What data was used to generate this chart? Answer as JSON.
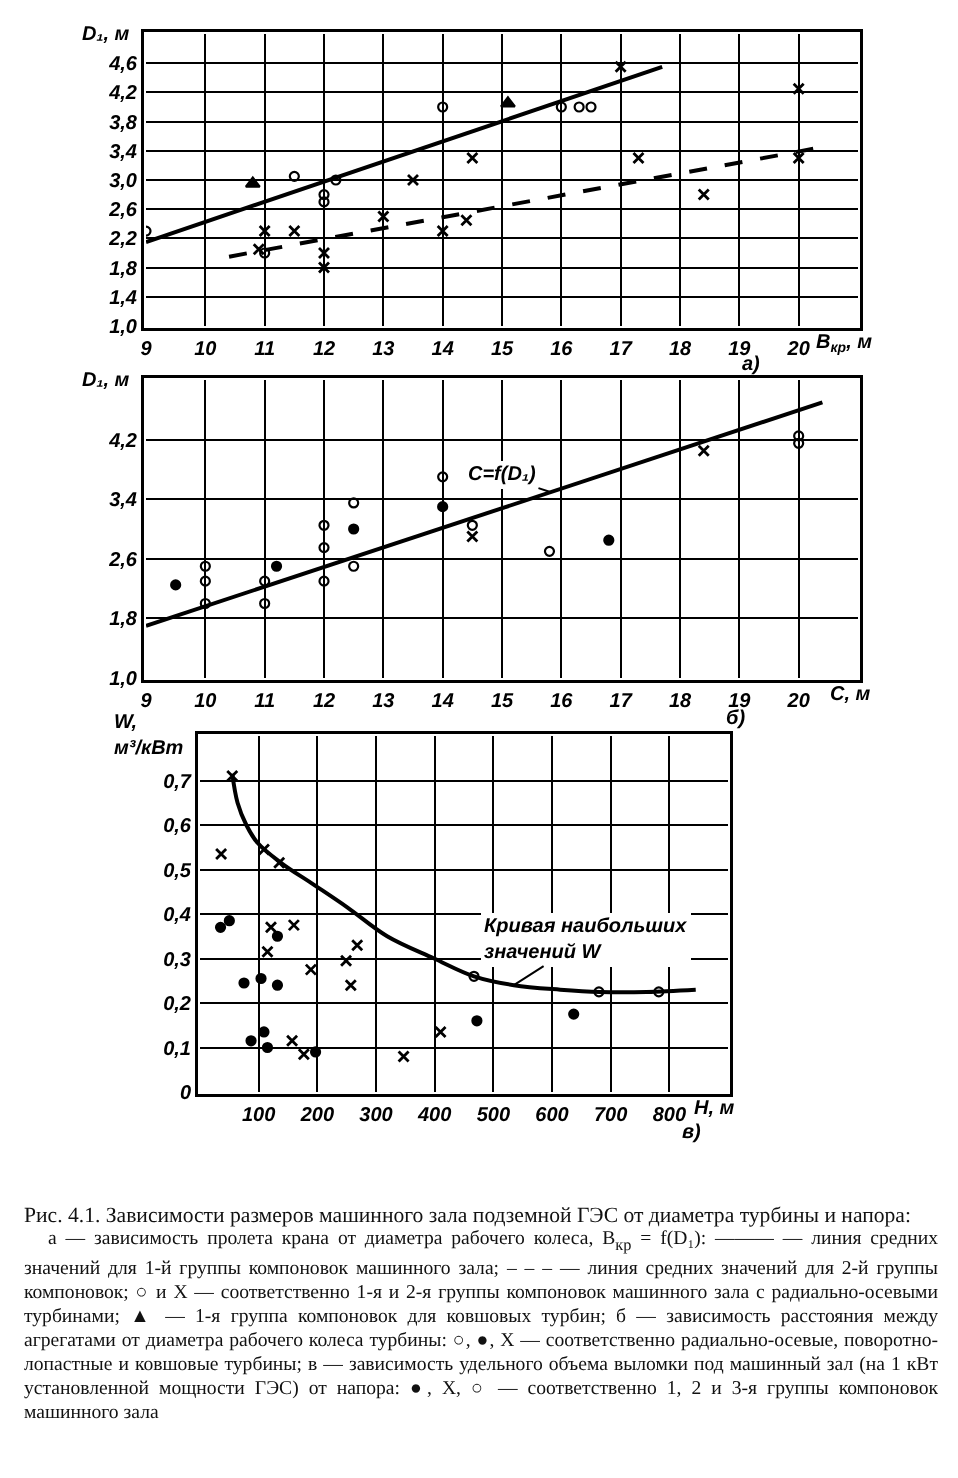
{
  "chart_data": [
    {
      "type": "scatter",
      "ylabel": "D₁, м",
      "xlabel": "B$_{кр}$, м",
      "annotations": [
        "а)"
      ],
      "xlim": [
        9,
        21
      ],
      "ylim": [
        1.0,
        5.0
      ],
      "xticks": [
        9,
        10,
        11,
        12,
        13,
        14,
        15,
        16,
        17,
        18,
        19,
        20
      ],
      "yticks": [
        {
          "value": 1.0,
          "label": "1,0"
        },
        {
          "value": 1.4,
          "label": "1,4"
        },
        {
          "value": 1.8,
          "label": "1,8"
        },
        {
          "value": 2.2,
          "label": "2,2"
        },
        {
          "value": 2.6,
          "label": "2,6"
        },
        {
          "value": 3.0,
          "label": "3,0"
        },
        {
          "value": 3.4,
          "label": "3,4"
        },
        {
          "value": 3.8,
          "label": "3,8"
        },
        {
          "value": 4.2,
          "label": "4,2"
        },
        {
          "value": 4.6,
          "label": "4,6"
        }
      ],
      "grid": true,
      "series": [
        {
          "type": "scatter",
          "marker": "circle-open",
          "color": "#000000",
          "x": [
            9,
            11,
            11.5,
            12,
            12,
            12.2,
            14,
            16,
            16.3,
            16.5
          ],
          "values": [
            2.3,
            2.0,
            3.05,
            2.8,
            2.7,
            3.0,
            4.0,
            4.0,
            4.0,
            4.0
          ]
        },
        {
          "type": "scatter",
          "marker": "cross",
          "color": "#000000",
          "x": [
            10.9,
            11,
            11.5,
            12,
            12,
            13,
            13.5,
            14,
            14.4,
            14.5,
            17,
            17.3,
            18.4,
            20,
            20
          ],
          "values": [
            2.05,
            2.3,
            2.3,
            2.0,
            1.8,
            2.5,
            3.0,
            2.3,
            2.45,
            3.3,
            4.55,
            3.3,
            2.8,
            4.25,
            3.3
          ]
        },
        {
          "type": "scatter",
          "marker": "triangle",
          "color": "#000000",
          "x": [
            10.8,
            15.1
          ],
          "values": [
            2.95,
            4.05
          ]
        },
        {
          "type": "line",
          "line_style": "solid",
          "color": "#000000",
          "x": [
            9,
            17.7
          ],
          "values": [
            2.15,
            4.55
          ]
        },
        {
          "type": "line",
          "line_style": "dashed",
          "color": "#000000",
          "x": [
            10.4,
            20.4
          ],
          "values": [
            1.95,
            3.45
          ]
        }
      ]
    },
    {
      "type": "scatter",
      "ylabel": "D₁, м",
      "xlabel": "C, м",
      "annotations": [
        {
          "text": "C=f(D₁)",
          "x": 15.8,
          "y": 3.5
        },
        "б)"
      ],
      "xlim": [
        9,
        21
      ],
      "ylim": [
        1.0,
        5.0
      ],
      "xticks": [
        9,
        10,
        11,
        12,
        13,
        14,
        15,
        16,
        17,
        18,
        19,
        20
      ],
      "yticks": [
        {
          "value": 1.0,
          "label": "1,0"
        },
        {
          "value": 1.8,
          "label": "1,8"
        },
        {
          "value": 2.6,
          "label": "2,6"
        },
        {
          "value": 3.4,
          "label": "3,4"
        },
        {
          "value": 4.2,
          "label": "4,2"
        }
      ],
      "grid": true,
      "series": [
        {
          "type": "scatter",
          "marker": "circle-open",
          "color": "#000000",
          "x": [
            10,
            10,
            10,
            11,
            11,
            12,
            12,
            12,
            12.5,
            12.5,
            14,
            14.5,
            15.8,
            20,
            20
          ],
          "values": [
            2.5,
            2.3,
            2.0,
            2.3,
            2.0,
            3.05,
            2.75,
            2.3,
            3.35,
            2.5,
            3.7,
            3.05,
            2.7,
            4.25,
            4.15
          ]
        },
        {
          "type": "scatter",
          "marker": "circle",
          "color": "#000000",
          "x": [
            9.5,
            11.2,
            12.5,
            14,
            16.8
          ],
          "values": [
            2.25,
            2.5,
            3.0,
            3.3,
            2.85
          ]
        },
        {
          "type": "scatter",
          "marker": "cross",
          "color": "#000000",
          "x": [
            14.5,
            18.4
          ],
          "values": [
            2.9,
            4.05
          ]
        },
        {
          "type": "line",
          "line_style": "solid",
          "color": "#000000",
          "x": [
            9,
            20.4
          ],
          "values": [
            1.7,
            4.7
          ]
        }
      ]
    },
    {
      "type": "scatter",
      "ylabel": "W,\nм³/кВт",
      "xlabel": "H, м",
      "annotations": [
        {
          "text": "Кривая наибольших\nзначений W",
          "x": 535,
          "y": 0.24
        },
        "в)"
      ],
      "xlim": [
        0,
        900
      ],
      "ylim": [
        0,
        0.8
      ],
      "xticks": [
        100,
        200,
        300,
        400,
        500,
        600,
        700,
        800
      ],
      "yticks": [
        0,
        {
          "value": 0.1,
          "label": "0,1"
        },
        {
          "value": 0.2,
          "label": "0,2"
        },
        {
          "value": 0.3,
          "label": "0,3"
        },
        {
          "value": 0.4,
          "label": "0,4"
        },
        {
          "value": 0.5,
          "label": "0,5"
        },
        {
          "value": 0.6,
          "label": "0,6"
        },
        {
          "value": 0.7,
          "label": "0,7"
        }
      ],
      "grid": true,
      "series": [
        {
          "type": "scatter",
          "marker": "circle",
          "color": "#000000",
          "x": [
            35,
            50,
            75,
            104,
            132,
            132,
            87,
            109,
            115,
            197,
            472,
            637
          ],
          "values": [
            0.37,
            0.385,
            0.245,
            0.255,
            0.35,
            0.24,
            0.115,
            0.135,
            0.1,
            0.09,
            0.16,
            0.175
          ]
        },
        {
          "type": "scatter",
          "marker": "cross",
          "color": "#000000",
          "x": [
            55,
            36,
            109,
            135,
            121,
            115,
            160,
            189,
            157,
            177,
            249,
            268,
            257,
            347,
            410
          ],
          "values": [
            0.71,
            0.535,
            0.545,
            0.515,
            0.37,
            0.315,
            0.375,
            0.275,
            0.115,
            0.085,
            0.295,
            0.33,
            0.24,
            0.08,
            0.135
          ]
        },
        {
          "type": "scatter",
          "marker": "circle-open",
          "color": "#000000",
          "x": [
            467,
            680,
            782
          ],
          "values": [
            0.26,
            0.225,
            0.225
          ]
        },
        {
          "type": "line",
          "line_style": "solid",
          "color": "#000000",
          "x": [
            55,
            64,
            79,
            98,
            138,
            195,
            251,
            319,
            399,
            467,
            535,
            614,
            682,
            761,
            845
          ],
          "values": [
            0.715,
            0.65,
            0.6,
            0.56,
            0.515,
            0.465,
            0.415,
            0.35,
            0.3,
            0.26,
            0.24,
            0.23,
            0.225,
            0.225,
            0.23
          ]
        }
      ]
    },
    {
      "type": "other",
      "title": "Рис. 4.1. Зависимости размеров машинного зала подземной ГЭС от диаметра турбины и напора:",
      "annotations": [
        "а — зависимость пролета крана от диаметра рабочего колеса, B$_{кр}$ = f(D₁): ——— — линия средних значений для 1-й группы компоновок машинного зала; – – – — линия средних значений для 2-й группы компоновок; ○ и X — соответственно 1-я и 2-я группы компоновок машинного зала с радиально-осевыми турбинами; ▲ — 1-я группа компоновок для ковшовых турбин; б — зависимость расстояния между агрегатами от диаметра рабочего колеса турбины: ○, ●, X — соответственно радиально-осевые, поворотно-лопастные и ковшовые турбины; в — зависимость удельного объема выломки под машинный зал (на 1 кВт установленной мощности ГЭС) от напора: ●, X, ○ — соответственно 1, 2 и 3-я группы компоновок машинного зала"
      ]
    }
  ]
}
